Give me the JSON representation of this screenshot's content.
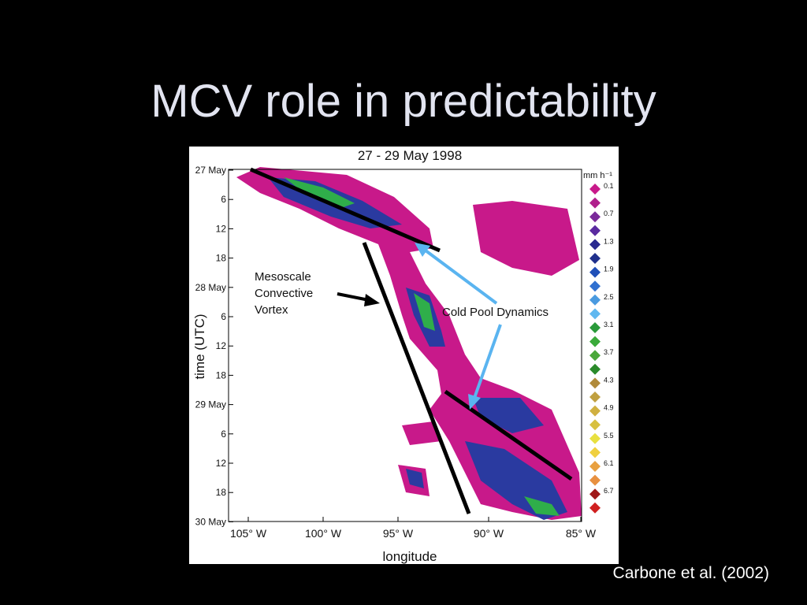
{
  "slide": {
    "title": "MCV role in predictability",
    "citation": "Carbone et al. (2002)"
  },
  "figure": {
    "title": "27 - 29 May 1998",
    "x_label": "longitude",
    "y_label": "time (UTC)",
    "x_ticks": [
      "105° W",
      "100° W",
      "95° W",
      "90° W",
      "85° W"
    ],
    "y_ticks": [
      "27 May",
      "6",
      "12",
      "18",
      "28 May",
      "6",
      "12",
      "18",
      "29 May",
      "6",
      "12",
      "18",
      "30 May"
    ],
    "colorbar_unit": "mm h⁻¹",
    "colorbar_labels": [
      "0.1",
      "0.7",
      "1.3",
      "1.9",
      "2.5",
      "3.1",
      "3.7",
      "4.3",
      "4.9",
      "5.5",
      "6.1",
      "6.7"
    ],
    "annotations": {
      "mcv": [
        "Mesoscale",
        "Convective",
        "Vortex"
      ],
      "cold_pool": "Cold Pool Dynamics"
    }
  }
}
